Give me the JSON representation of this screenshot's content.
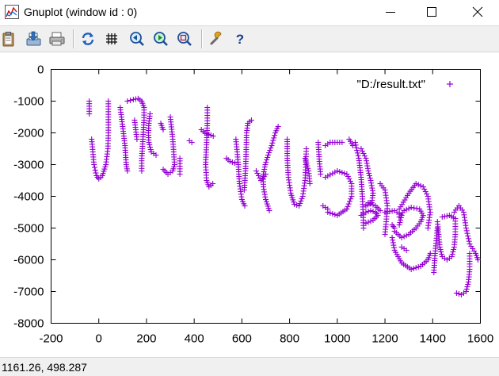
{
  "window": {
    "title": "Gnuplot (window id : 0)"
  },
  "toolbar": {
    "icons": [
      "clipboard-icon",
      "print-preview-icon",
      "printer-icon",
      "replot-icon",
      "grid-icon",
      "previous-zoom-icon",
      "next-zoom-icon",
      "autoscale-icon",
      "options-icon",
      "help-icon"
    ]
  },
  "status": {
    "coordinates": "1161.26,  498.287"
  },
  "colors": {
    "series": "#9400d3",
    "axis": "#000000"
  },
  "chart_data": {
    "type": "scatter",
    "title": "",
    "xlabel": "",
    "ylabel": "",
    "xlim": [
      -200,
      1600
    ],
    "ylim": [
      -8000,
      0
    ],
    "x_ticks": [
      "-200",
      "0",
      "200",
      "400",
      "600",
      "800",
      "1000",
      "1200",
      "1400",
      "1600"
    ],
    "y_ticks": [
      "0",
      "-1000",
      "-2000",
      "-3000",
      "-4000",
      "-5000",
      "-6000",
      "-7000",
      "-8000"
    ],
    "legend_position": "top-right",
    "marker": "+",
    "series": [
      {
        "name": "\"D:/result.txt\"",
        "strokes": [
          [
            [
              -30,
              -2200
            ],
            [
              -25,
              -2600
            ],
            [
              -20,
              -3000
            ],
            [
              -10,
              -3350
            ],
            [
              0,
              -3450
            ],
            [
              15,
              -3350
            ],
            [
              30,
              -3000
            ],
            [
              38,
              -2500
            ],
            [
              40,
              -2000
            ],
            [
              40,
              -1500
            ],
            [
              40,
              -1000
            ]
          ],
          [
            [
              -40,
              -1000
            ],
            [
              -40,
              -1400
            ]
          ],
          [
            [
              90,
              -1200
            ],
            [
              100,
              -1800
            ],
            [
              110,
              -2400
            ],
            [
              115,
              -3000
            ],
            [
              120,
              -3200
            ]
          ],
          [
            [
              120,
              -1000
            ],
            [
              145,
              -950
            ],
            [
              165,
              -920
            ],
            [
              180,
              -1000
            ],
            [
              190,
              -1200
            ],
            [
              190,
              -1600
            ],
            [
              185,
              -2200
            ],
            [
              180,
              -2800
            ],
            [
              180,
              -3200
            ]
          ],
          [
            [
              150,
              -1600
            ],
            [
              160,
              -2200
            ]
          ],
          [
            [
              215,
              -1400
            ],
            [
              210,
              -1700
            ],
            [
              208,
              -2000
            ],
            [
              210,
              -2300
            ],
            [
              220,
              -2600
            ],
            [
              240,
              -2700
            ]
          ],
          [
            [
              260,
              -1700
            ],
            [
              270,
              -1900
            ]
          ],
          [
            [
              300,
              -1500
            ],
            [
              310,
              -2200
            ],
            [
              318,
              -3000
            ],
            [
              310,
              -3200
            ],
            [
              290,
              -3300
            ],
            [
              270,
              -3150
            ]
          ],
          [
            [
              340,
              -2800
            ],
            [
              340,
              -3300
            ]
          ],
          [
            [
              380,
              -2250
            ],
            [
              390,
              -2300
            ]
          ],
          [
            [
              430,
              -1900
            ],
            [
              445,
              -2000
            ],
            [
              460,
              -2050
            ],
            [
              480,
              -2100
            ]
          ],
          [
            [
              455,
              -1200
            ],
            [
              455,
              -1700
            ],
            [
              452,
              -2300
            ],
            [
              448,
              -3000
            ],
            [
              452,
              -3500
            ],
            [
              462,
              -3700
            ],
            [
              478,
              -3600
            ]
          ],
          [
            [
              535,
              -2800
            ],
            [
              550,
              -2900
            ],
            [
              570,
              -2950
            ]
          ],
          [
            [
              575,
              -2200
            ],
            [
              585,
              -3000
            ],
            [
              590,
              -3600
            ],
            [
              600,
              -4100
            ],
            [
              612,
              -4300
            ]
          ],
          [
            [
              610,
              -3800
            ],
            [
              615,
              -3200
            ],
            [
              618,
              -2600
            ],
            [
              620,
              -2000
            ],
            [
              625,
              -1700
            ],
            [
              640,
              -1600
            ]
          ],
          [
            [
              660,
              -3200
            ],
            [
              680,
              -3500
            ],
            [
              700,
              -3300
            ]
          ],
          [
            [
              715,
              -4450
            ],
            [
              700,
              -4100
            ],
            [
              690,
              -3700
            ],
            [
              690,
              -3300
            ],
            [
              698,
              -3000
            ],
            [
              710,
              -2700
            ],
            [
              725,
              -2400
            ],
            [
              740,
              -2000
            ],
            [
              752,
              -1800
            ]
          ],
          [
            [
              790,
              -2200
            ],
            [
              790,
              -2800
            ],
            [
              795,
              -3400
            ],
            [
              805,
              -3900
            ],
            [
              820,
              -4250
            ],
            [
              840,
              -4300
            ],
            [
              855,
              -4000
            ],
            [
              865,
              -3500
            ],
            [
              868,
              -3000
            ],
            [
              870,
              -2500
            ]
          ],
          [
            [
              865,
              -2800
            ],
            [
              880,
              -3200
            ],
            [
              885,
              -3600
            ]
          ],
          [
            [
              920,
              -2300
            ],
            [
              925,
              -2900
            ],
            [
              930,
              -3300
            ]
          ],
          [
            [
              950,
              -2400
            ],
            [
              970,
              -2300
            ],
            [
              1000,
              -2300
            ],
            [
              1020,
              -2300
            ]
          ],
          [
            [
              950,
              -3400
            ],
            [
              1000,
              -3200
            ],
            [
              1040,
              -3300
            ],
            [
              1060,
              -3600
            ],
            [
              1060,
              -4000
            ],
            [
              1040,
              -4400
            ],
            [
              1000,
              -4600
            ],
            [
              960,
              -4500
            ]
          ],
          [
            [
              940,
              -4300
            ],
            [
              960,
              -4400
            ]
          ],
          [
            [
              1050,
              -2200
            ],
            [
              1065,
              -2400
            ]
          ],
          [
            [
              1075,
              -2300
            ],
            [
              1090,
              -2800
            ],
            [
              1100,
              -3400
            ],
            [
              1105,
              -4000
            ],
            [
              1108,
              -4500
            ],
            [
              1110,
              -5000
            ]
          ],
          [
            [
              1100,
              -2500
            ],
            [
              1120,
              -2800
            ],
            [
              1130,
              -3200
            ],
            [
              1140,
              -3500
            ],
            [
              1150,
              -3900
            ],
            [
              1145,
              -4200
            ],
            [
              1120,
              -4300
            ]
          ],
          [
            [
              1100,
              -4600
            ],
            [
              1120,
              -4500
            ],
            [
              1140,
              -4450
            ],
            [
              1160,
              -4500
            ],
            [
              1170,
              -4600
            ],
            [
              1150,
              -4750
            ],
            [
              1120,
              -4850
            ]
          ],
          [
            [
              1130,
              -4200
            ],
            [
              1160,
              -4300
            ],
            [
              1180,
              -4450
            ]
          ],
          [
            [
              1180,
              -3600
            ],
            [
              1200,
              -3800
            ],
            [
              1210,
              -4300
            ],
            [
              1205,
              -4800
            ],
            [
              1200,
              -5200
            ]
          ],
          [
            [
              1200,
              -4500
            ],
            [
              1240,
              -4450
            ],
            [
              1270,
              -4600
            ],
            [
              1260,
              -4900
            ]
          ],
          [
            [
              1240,
              -5100
            ],
            [
              1270,
              -5300
            ],
            [
              1300,
              -5200
            ],
            [
              1330,
              -5000
            ],
            [
              1350,
              -4800
            ],
            [
              1360,
              -4600
            ],
            [
              1345,
              -4400
            ],
            [
              1310,
              -4350
            ],
            [
              1280,
              -4450
            ],
            [
              1260,
              -4650
            ]
          ],
          [
            [
              1260,
              -4400
            ],
            [
              1300,
              -3900
            ],
            [
              1330,
              -3600
            ],
            [
              1360,
              -3700
            ],
            [
              1380,
              -4000
            ],
            [
              1390,
              -4500
            ],
            [
              1380,
              -5000
            ]
          ],
          [
            [
              1230,
              -5300
            ],
            [
              1240,
              -5700
            ],
            [
              1270,
              -6100
            ],
            [
              1310,
              -6300
            ],
            [
              1350,
              -6200
            ],
            [
              1380,
              -6000
            ],
            [
              1390,
              -5800
            ]
          ],
          [
            [
              1270,
              -5600
            ],
            [
              1290,
              -5700
            ]
          ],
          [
            [
              1230,
              -4900
            ],
            [
              1240,
              -5000
            ]
          ],
          [
            [
              1420,
              -4800
            ],
            [
              1425,
              -5200
            ],
            [
              1430,
              -5600
            ],
            [
              1440,
              -5900
            ],
            [
              1460,
              -6000
            ],
            [
              1480,
              -5900
            ],
            [
              1490,
              -5600
            ],
            [
              1495,
              -5200
            ],
            [
              1495,
              -4700
            ],
            [
              1470,
              -4600
            ],
            [
              1440,
              -4650
            ]
          ],
          [
            [
              1420,
              -5000
            ],
            [
              1410,
              -5800
            ],
            [
              1405,
              -6400
            ]
          ],
          [
            [
              1490,
              -4500
            ],
            [
              1510,
              -4300
            ],
            [
              1530,
              -4500
            ],
            [
              1540,
              -5000
            ],
            [
              1555,
              -5500
            ],
            [
              1580,
              -5800
            ],
            [
              1590,
              -6000
            ]
          ],
          [
            [
              1555,
              -5800
            ],
            [
              1555,
              -6300
            ],
            [
              1550,
              -6700
            ],
            [
              1540,
              -7000
            ],
            [
              1520,
              -7100
            ],
            [
              1500,
              -7050
            ]
          ]
        ]
      }
    ]
  }
}
